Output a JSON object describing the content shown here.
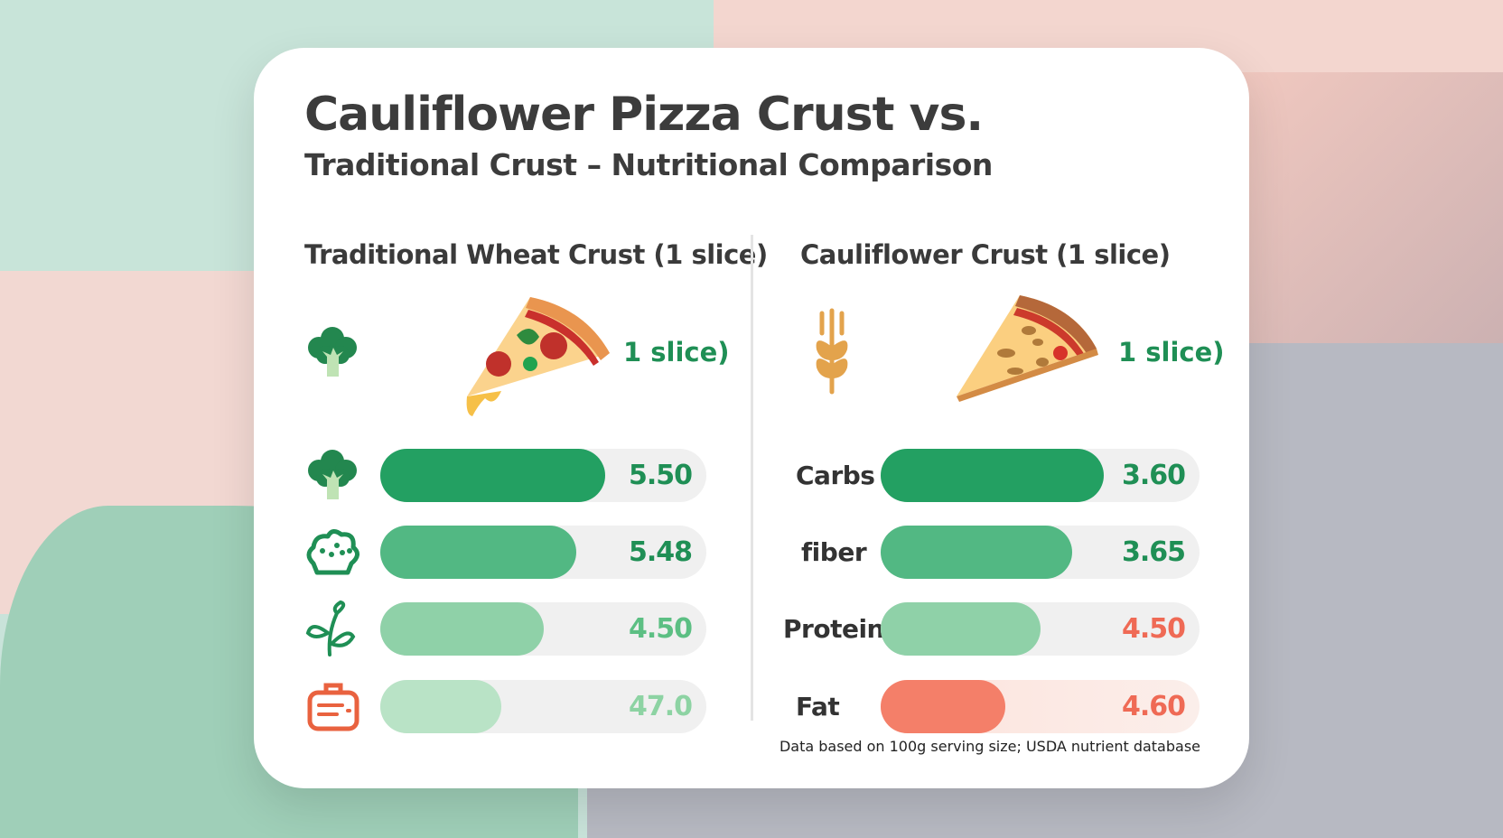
{
  "title": "Cauliflower Pizza Crust vs.",
  "subtitle": "Traditional Crust – Nutritional Comparison",
  "footer": "Data based on 100g serving size; USDA nutrient database",
  "colors": {
    "green_dark": "#23a062",
    "green_mid": "#52b883",
    "green_light": "#8fd1a8",
    "green_pale": "#b9e3c6",
    "coral": "#f47f69",
    "track": "#f0f0f0"
  },
  "chart_data": [
    {
      "type": "bar",
      "title": "Traditional Wheat Crust (1 slice)",
      "header_label": "1 slice)",
      "icons": [
        "broccoli-icon",
        "broccoli-icon",
        "cauliflower-icon",
        "sprout-icon",
        "scale-icon"
      ],
      "categories": [
        "",
        "",
        "",
        ""
      ],
      "values": [
        5.5,
        5.48,
        4.5,
        47.0
      ],
      "value_labels": [
        "5.50",
        "5.48",
        "4.50",
        "47.0"
      ],
      "fill_fraction": [
        0.69,
        0.6,
        0.5,
        0.37
      ],
      "bar_colors": [
        "#23a062",
        "#52b883",
        "#8fd1a8",
        "#b9e3c6"
      ],
      "value_colors": [
        "#1f8f55",
        "#1f8f55",
        "#5cbf83",
        "#8dd3a3"
      ]
    },
    {
      "type": "bar",
      "title": "Cauliflower Crust (1 slice)",
      "header_label": "1 slice)",
      "icons": [
        "wheat-icon"
      ],
      "categories": [
        "Carbs",
        "fiber",
        "Protein",
        "Fat"
      ],
      "values": [
        3.6,
        3.65,
        4.5,
        4.6
      ],
      "value_labels": [
        "3.60",
        "3.65",
        "4.50",
        "4.60"
      ],
      "fill_fraction": [
        0.7,
        0.6,
        0.5,
        0.39
      ],
      "bar_colors": [
        "#23a062",
        "#52b883",
        "#8fd1a8",
        "#f47f69"
      ],
      "value_colors": [
        "#1f8f55",
        "#1f8f55",
        "#ef6a55",
        "#ef6a55"
      ]
    }
  ]
}
